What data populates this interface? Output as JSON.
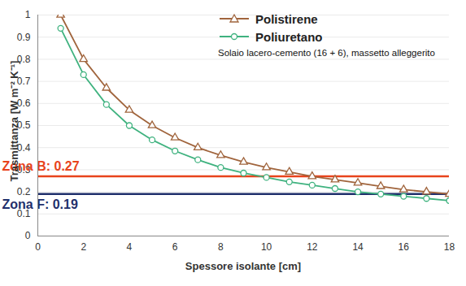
{
  "chart_data": {
    "type": "line",
    "x_label": "Spessore isolante [cm]",
    "y_label": "Trasmittanza [W m⁻² K⁻¹]",
    "annotation": "Solaio lacero-cemento (16 + 6), massetto alleggerito",
    "x": [
      1,
      2,
      3,
      4,
      5,
      6,
      7,
      8,
      9,
      10,
      11,
      12,
      13,
      14,
      15,
      16,
      17,
      18
    ],
    "series": [
      {
        "name": "Polistirene",
        "color": "#a0643c",
        "marker": "triangle",
        "line_style": "solid",
        "values": [
          1.0,
          0.8,
          0.67,
          0.57,
          0.5,
          0.445,
          0.4,
          0.365,
          0.335,
          0.31,
          0.29,
          0.27,
          0.255,
          0.24,
          0.225,
          0.21,
          0.2,
          0.19
        ]
      },
      {
        "name": "Poliuretano",
        "color": "#3fb27f",
        "marker": "circle",
        "line_style": "solid",
        "values": [
          0.94,
          0.73,
          0.595,
          0.5,
          0.435,
          0.385,
          0.345,
          0.31,
          0.285,
          0.265,
          0.245,
          0.23,
          0.215,
          0.2,
          0.19,
          0.18,
          0.17,
          0.16
        ]
      }
    ],
    "reference_lines": [
      {
        "value": 0.27,
        "label": "Zona B: 0.27",
        "color": "#e8431c",
        "line_style": "dashed"
      },
      {
        "value": 0.19,
        "label": "Zona F: 0.19",
        "color": "#1f2f6b",
        "line_style": "dashed"
      }
    ],
    "xlim": [
      0,
      18
    ],
    "xticks": [
      0,
      2,
      4,
      6,
      8,
      10,
      12,
      14,
      16,
      18
    ],
    "ylim": [
      0,
      1
    ],
    "yticks": [
      0,
      0.1,
      0.2,
      0.3,
      0.4,
      0.5,
      0.6,
      0.7,
      0.8,
      0.9,
      1
    ],
    "grid": true,
    "legend": "top-right"
  }
}
